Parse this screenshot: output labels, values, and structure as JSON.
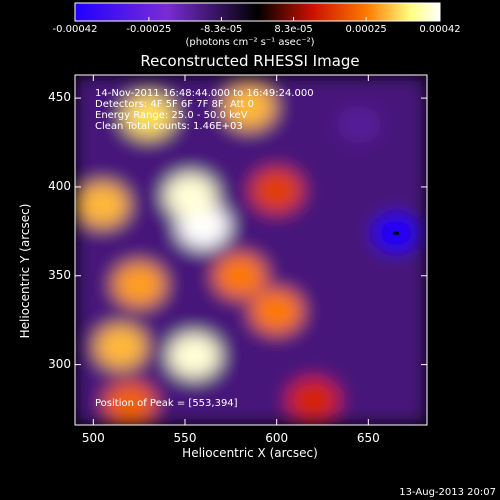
{
  "colorbar": {
    "ticks": [
      "-0.00042",
      "-0.00025",
      "-8.3e-05",
      "8.3e-05",
      "0.00025",
      "0.00042"
    ],
    "tick_values": [
      -0.00042,
      -0.00025,
      -8.3e-05,
      8.3e-05,
      0.00025,
      0.00042
    ],
    "units": "(photons cm⁻² s⁻¹ asec⁻²)",
    "range": [
      -0.00042,
      0.00042
    ],
    "colors": [
      "#1f00ff",
      "#7a2cd6",
      "#000000",
      "#cc1000",
      "#ff7a00",
      "#ffff80",
      "#ffffff"
    ]
  },
  "chart_data": {
    "type": "heatmap",
    "title": "Reconstructed RHESSI Image",
    "xlabel": "Heliocentric X (arcsec)",
    "ylabel": "Heliocentric Y (arcsec)",
    "xlim": [
      490,
      682
    ],
    "ylim": [
      266,
      463
    ],
    "xticks": [
      500,
      550,
      600,
      650
    ],
    "yticks": [
      300,
      350,
      400,
      450
    ],
    "peak": [
      553,
      394
    ],
    "bright_sources": [
      {
        "x": 560,
        "y": 378,
        "level": 0.00042
      },
      {
        "x": 553,
        "y": 395,
        "level": 0.0004
      },
      {
        "x": 555,
        "y": 305,
        "level": 0.0004
      },
      {
        "x": 530,
        "y": 440,
        "level": 0.00033
      },
      {
        "x": 585,
        "y": 445,
        "level": 0.0003
      },
      {
        "x": 505,
        "y": 390,
        "level": 0.0003
      },
      {
        "x": 525,
        "y": 345,
        "level": 0.00028
      },
      {
        "x": 515,
        "y": 310,
        "level": 0.0003
      },
      {
        "x": 580,
        "y": 350,
        "level": 0.00025
      },
      {
        "x": 600,
        "y": 330,
        "level": 0.00025
      },
      {
        "x": 520,
        "y": 278,
        "level": 0.00022
      },
      {
        "x": 600,
        "y": 398,
        "level": 0.00018
      },
      {
        "x": 620,
        "y": 280,
        "level": 0.00015
      }
    ],
    "dark_sources": [
      {
        "x": 665,
        "y": 374,
        "level": -0.00042
      },
      {
        "x": 645,
        "y": 435,
        "level": -0.00015
      },
      {
        "x": 640,
        "y": 320,
        "level": -0.00012
      }
    ]
  },
  "info": {
    "line1": "14-Nov-2011 16:48:44.000 to 16:49:24.000",
    "line2": "Detectors: 4F 5F 6F 7F 8F, Att 0",
    "line3": "Energy Range: 25.0 - 50.0 keV",
    "line4": "Clean    Total counts: 1.46E+03"
  },
  "peak_label": "Position of Peak = [553,394]",
  "footer_date": "13-Aug-2013 20:07"
}
